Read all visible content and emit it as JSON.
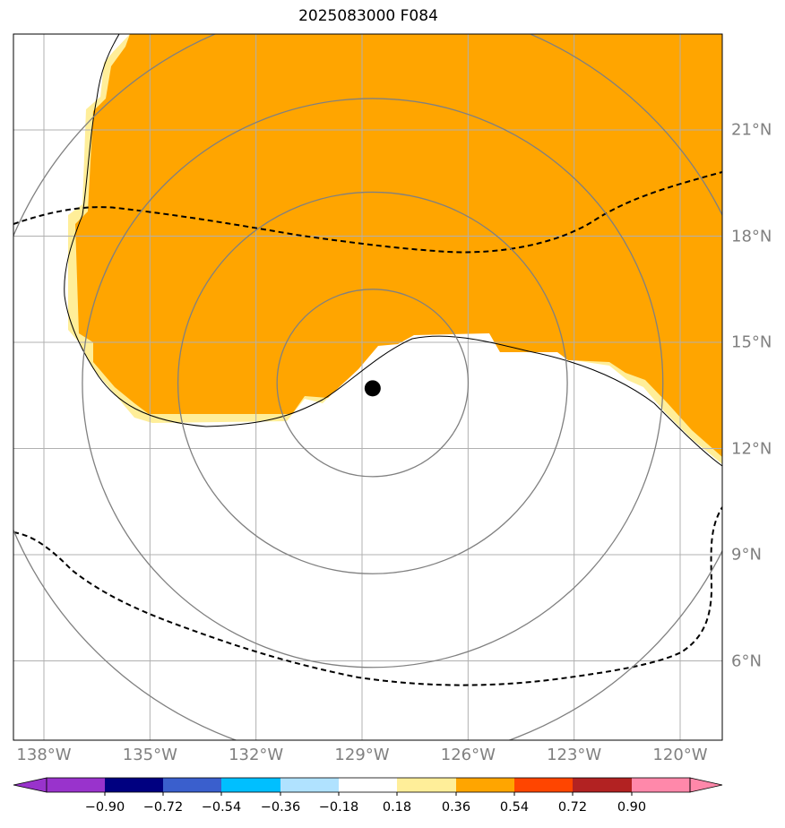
{
  "title": "2025083000 F084",
  "center_marker": {
    "lon": -128.7,
    "lat": 13.7
  },
  "lon_ticks": [
    {
      "value": -138,
      "label": "138°W"
    },
    {
      "value": -135,
      "label": "135°W"
    },
    {
      "value": -132,
      "label": "132°W"
    },
    {
      "value": -129,
      "label": "129°W"
    },
    {
      "value": -126,
      "label": "126°W"
    },
    {
      "value": -123,
      "label": "123°W"
    },
    {
      "value": -120,
      "label": "120°W"
    }
  ],
  "lat_ticks": [
    {
      "value": 21,
      "label": "21°N"
    },
    {
      "value": 18,
      "label": "18°N"
    },
    {
      "value": 15,
      "label": "15°N"
    },
    {
      "value": 12,
      "label": "12°N"
    },
    {
      "value": 9,
      "label": "9°N"
    },
    {
      "value": 6,
      "label": "6°N"
    }
  ],
  "extent": {
    "lon_min": -138.8,
    "lon_max": -118.8,
    "lat_min": 3.9,
    "lat_max": 23.8
  },
  "colorbar": {
    "colors": [
      "#9933cc",
      "#000080",
      "#3a5fcd",
      "#00bfff",
      "#b0e2ff",
      "#ffffff",
      "#ffee99",
      "#ffa500",
      "#ff4500",
      "#b22222",
      "#ff88aa"
    ],
    "tick_labels": [
      "−0.90",
      "−0.72",
      "−0.54",
      "−0.36",
      "−0.18",
      "0.18",
      "0.36",
      "0.54",
      "0.72",
      "0.90"
    ]
  },
  "shade_color": "#ffa500",
  "edge_color": "#ffee99",
  "range_rings_deg": [
    2.7,
    5.5,
    8.2,
    11.0
  ]
}
